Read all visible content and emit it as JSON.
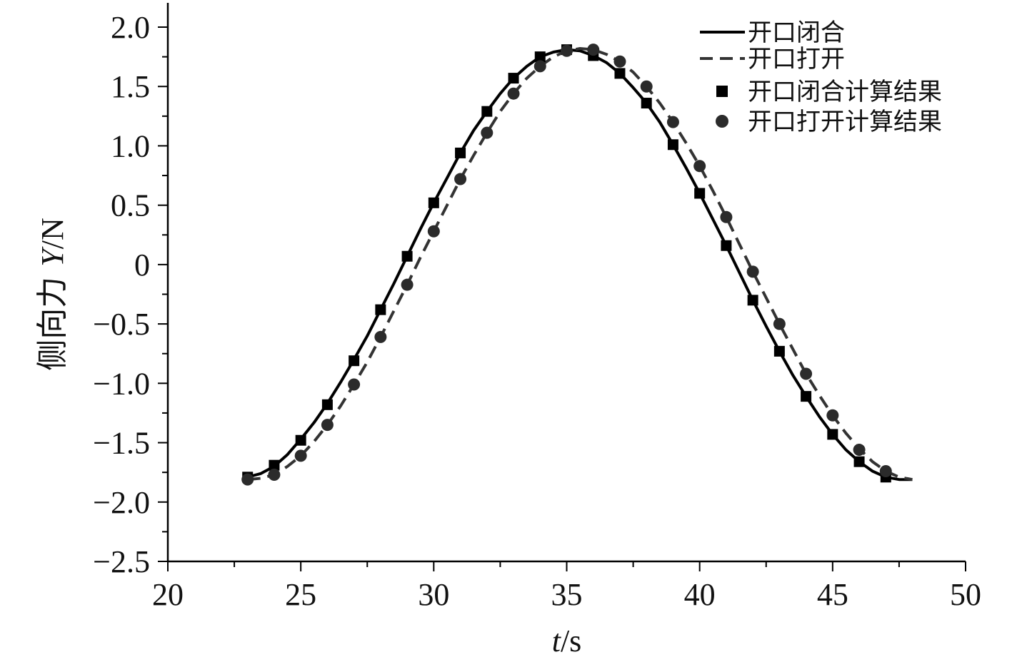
{
  "chart_data": {
    "type": "line",
    "title": "",
    "xlabel_italic": "t",
    "xlabel_rest": "/s",
    "ylabel_cjk": "侧向力 ",
    "ylabel_italic": "Y",
    "ylabel_rest": "/N",
    "xlim": [
      20,
      50
    ],
    "ylim": [
      -2.5,
      2.0
    ],
    "x_major_ticks": [
      20,
      25,
      30,
      35,
      40,
      45,
      50
    ],
    "x_tick_labels": [
      "20",
      "25",
      "30",
      "35",
      "40",
      "45",
      "50"
    ],
    "x_minor_step": 2.5,
    "y_major_ticks": [
      2.0,
      1.5,
      1.0,
      0.5,
      0,
      -0.5,
      -1.0,
      -1.5,
      -2.0,
      -2.5
    ],
    "y_tick_labels": [
      "2.0",
      "1.5",
      "1.0",
      "0.5",
      "0",
      "−0.5",
      "−1.0",
      "−1.5",
      "−2.0",
      "−2.5"
    ],
    "y_minor_step": 0.25,
    "grid": false,
    "legend_position": "top-right",
    "series": [
      {
        "name": "开口闭合",
        "style": "solid",
        "color": "#000000",
        "x": [
          23,
          23.5,
          24,
          24.5,
          25,
          25.5,
          26,
          26.5,
          27,
          27.5,
          28,
          28.5,
          29,
          29.5,
          30,
          30.5,
          31,
          31.5,
          32,
          32.5,
          33,
          33.5,
          34,
          34.5,
          35,
          35.5,
          36,
          36.5,
          37,
          37.5,
          38,
          38.5,
          39,
          39.5,
          40,
          40.5,
          41,
          41.5,
          42,
          42.5,
          43,
          43.5,
          44,
          44.5,
          45,
          45.5,
          46,
          46.5,
          47,
          47.5,
          48
        ],
        "y": [
          -1.79,
          -1.76,
          -1.7,
          -1.6,
          -1.47,
          -1.33,
          -1.17,
          -0.99,
          -0.8,
          -0.6,
          -0.38,
          -0.16,
          0.07,
          0.3,
          0.52,
          0.73,
          0.94,
          1.13,
          1.29,
          1.44,
          1.57,
          1.67,
          1.75,
          1.79,
          1.81,
          1.8,
          1.76,
          1.7,
          1.61,
          1.49,
          1.36,
          1.2,
          1.01,
          0.81,
          0.6,
          0.38,
          0.16,
          -0.07,
          -0.3,
          -0.52,
          -0.73,
          -0.93,
          -1.11,
          -1.28,
          -1.43,
          -1.56,
          -1.66,
          -1.74,
          -1.79,
          -1.81,
          -1.81
        ]
      },
      {
        "name": "开口打开",
        "style": "dashed",
        "color": "#333333",
        "x": [
          23,
          23.5,
          24,
          24.5,
          25,
          25.5,
          26,
          26.5,
          27,
          27.5,
          28,
          28.5,
          29,
          29.5,
          30,
          30.5,
          31,
          31.5,
          32,
          32.5,
          33,
          33.5,
          34,
          34.5,
          35,
          35.5,
          36,
          36.5,
          37,
          37.5,
          38,
          38.5,
          39,
          39.5,
          40,
          40.5,
          41,
          41.5,
          42,
          42.5,
          43,
          43.5,
          44,
          44.5,
          45,
          45.5,
          46,
          46.5,
          47,
          47.5,
          48
        ],
        "y": [
          -1.81,
          -1.8,
          -1.77,
          -1.7,
          -1.61,
          -1.49,
          -1.35,
          -1.19,
          -1.01,
          -0.82,
          -0.61,
          -0.39,
          -0.17,
          0.06,
          0.28,
          0.5,
          0.72,
          0.92,
          1.11,
          1.29,
          1.44,
          1.57,
          1.67,
          1.75,
          1.8,
          1.82,
          1.81,
          1.77,
          1.71,
          1.62,
          1.5,
          1.36,
          1.2,
          1.02,
          0.83,
          0.62,
          0.4,
          0.17,
          -0.06,
          -0.28,
          -0.5,
          -0.71,
          -0.92,
          -1.1,
          -1.27,
          -1.42,
          -1.55,
          -1.66,
          -1.74,
          -1.79,
          -1.81
        ]
      },
      {
        "name": "开口闭合计算结果",
        "style": "marker-square",
        "color": "#000000",
        "x": [
          23,
          24,
          25,
          26,
          27,
          28,
          29,
          30,
          31,
          32,
          33,
          34,
          35,
          36,
          37,
          38,
          39,
          40,
          41,
          42,
          43,
          44,
          45,
          46,
          47
        ],
        "y": [
          -1.79,
          -1.69,
          -1.48,
          -1.18,
          -0.81,
          -0.38,
          0.07,
          0.52,
          0.94,
          1.29,
          1.57,
          1.75,
          1.81,
          1.76,
          1.61,
          1.36,
          1.01,
          0.6,
          0.16,
          -0.3,
          -0.73,
          -1.11,
          -1.43,
          -1.66,
          -1.79
        ]
      },
      {
        "name": "开口打开计算结果",
        "style": "marker-circle",
        "color": "#2b2b2b",
        "x": [
          23,
          24,
          25,
          26,
          27,
          28,
          29,
          30,
          31,
          32,
          33,
          34,
          35,
          36,
          37,
          38,
          39,
          40,
          41,
          42,
          43,
          44,
          45,
          46,
          47
        ],
        "y": [
          -1.81,
          -1.77,
          -1.61,
          -1.35,
          -1.01,
          -0.61,
          -0.17,
          0.28,
          0.72,
          1.11,
          1.44,
          1.67,
          1.8,
          1.81,
          1.71,
          1.5,
          1.2,
          0.83,
          0.4,
          -0.06,
          -0.5,
          -0.92,
          -1.27,
          -1.56,
          -1.74
        ]
      }
    ]
  }
}
